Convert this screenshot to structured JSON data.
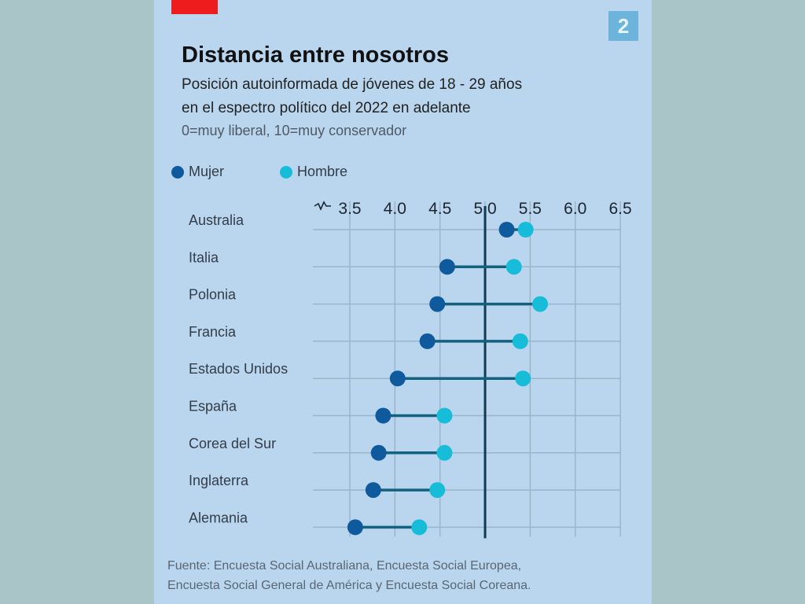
{
  "page_badge": "2",
  "title": "Distancia entre nosotros",
  "subtitle_lines": [
    "Posición autoinformada de jóvenes de 18 - 29 años",
    "en el espectro político del 2022 en adelante"
  ],
  "scale_note": "0=muy liberal, 10=muy conservador",
  "source_lines": [
    "Fuente: Encuesta Social Australiana, Encuesta Social Europea,",
    "Encuesta Social General de América y Encuesta Social Coreana."
  ],
  "colors": {
    "mujer": "#0f5a9c",
    "hombre": "#17bcd8",
    "accent_red": "#ee1c1c",
    "grid": "#9db4c8",
    "reference_line": "#0e3a52",
    "connector": "#13607f"
  },
  "chart_data": {
    "type": "dumbbell",
    "title": "Distancia entre nosotros",
    "xlabel": "",
    "ylabel": "",
    "xlim": [
      3.5,
      6.5
    ],
    "x_ticks": [
      "3.5",
      "4.0",
      "4.5",
      "5.0",
      "5.5",
      "6.0",
      "6.5"
    ],
    "x_tick_values": [
      3.5,
      4.0,
      4.5,
      5.0,
      5.5,
      6.0,
      6.5
    ],
    "axis_break": true,
    "reference_line": 5.0,
    "grid": true,
    "legend_position": "top-left",
    "categories": [
      "Australia",
      "Italia",
      "Polonia",
      "Francia",
      "Estados Unidos",
      "España",
      "Corea del Sur",
      "Inglaterra",
      "Alemania"
    ],
    "series": [
      {
        "name": "Mujer",
        "values": [
          5.24,
          4.58,
          4.47,
          4.36,
          4.03,
          3.87,
          3.82,
          3.76,
          3.56
        ]
      },
      {
        "name": "Hombre",
        "values": [
          5.45,
          5.32,
          5.61,
          5.39,
          5.42,
          4.55,
          4.55,
          4.47,
          4.27
        ]
      }
    ]
  }
}
